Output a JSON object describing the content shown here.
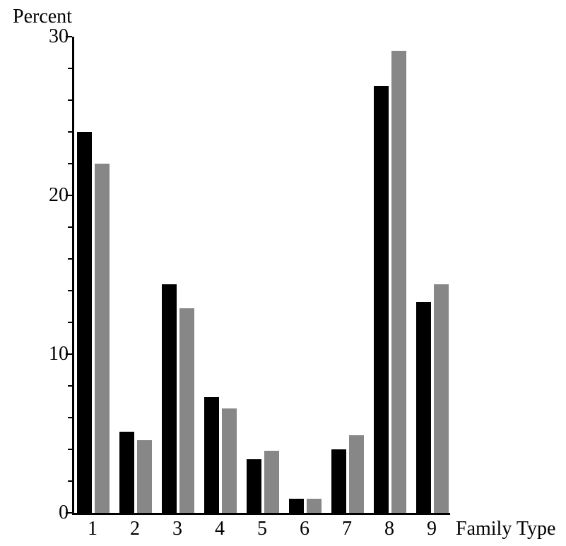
{
  "chart_data": {
    "type": "bar",
    "title": "",
    "ylabel": "Percent",
    "xlabel": "Family Type",
    "categories": [
      "1",
      "2",
      "3",
      "4",
      "5",
      "6",
      "7",
      "8",
      "9"
    ],
    "series": [
      {
        "name": "black",
        "color": "#000000",
        "values": [
          24.0,
          5.1,
          14.4,
          7.3,
          3.4,
          0.9,
          4.0,
          26.9,
          13.3
        ]
      },
      {
        "name": "gray",
        "color": "#878787",
        "values": [
          22.0,
          4.6,
          12.9,
          6.6,
          3.9,
          0.9,
          4.9,
          29.1,
          14.4
        ]
      }
    ],
    "ylim": [
      0,
      30
    ],
    "y_major_ticks": [
      0,
      10,
      20,
      30
    ],
    "y_minor_tick_step": 2,
    "grid": false,
    "legend": "none",
    "background": "#ffffff",
    "axis_color": "#000000"
  }
}
